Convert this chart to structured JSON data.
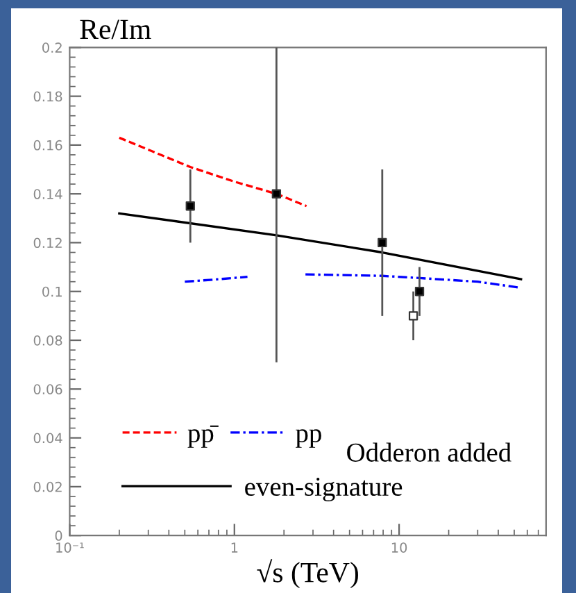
{
  "chart_data": {
    "type": "line",
    "ylabel": "Re/Im",
    "xlabel": "√s (TeV)",
    "log": "x",
    "xlim": [
      0.1,
      78
    ],
    "xticks": [
      {
        "value": 0.1,
        "label": "10⁻¹"
      },
      1,
      10
    ],
    "ylim": [
      0,
      0.2
    ],
    "yticks": [
      0,
      0.02,
      0.04,
      0.06,
      0.08,
      0.1,
      0.12,
      0.14,
      0.16,
      0.18,
      0.2
    ],
    "grid": false,
    "legend": "bottom left",
    "annotations": [
      "Odderon added"
    ],
    "series": [
      {
        "name": "pp̄",
        "line_style": "dashed",
        "color": "#ff0000",
        "x": [
          0.2,
          0.54,
          1.0,
          1.8,
          2.74
        ],
        "values": [
          0.163,
          0.151,
          0.145,
          0.14,
          0.135
        ]
      },
      {
        "name": "pp",
        "line_style": "dashdot",
        "color": "#0000ff",
        "x": [
          0.5,
          0.8,
          1.2,
          2.0,
          2.7,
          7.9,
          13.3,
          30,
          55
        ],
        "values": [
          0.104,
          0.105,
          0.106,
          null,
          0.107,
          0.1064,
          0.1055,
          0.104,
          0.1015
        ]
      },
      {
        "name": "even-signature",
        "line_style": "solid",
        "color": "#000000",
        "x": [
          0.2,
          1.8,
          7.9,
          55
        ],
        "values": [
          0.132,
          0.123,
          0.116,
          0.105
        ]
      },
      {
        "type": "scatter",
        "marker": "square",
        "color": "#000000",
        "x": [
          0.54,
          1.8,
          7.9,
          13.3
        ],
        "values": [
          0.135,
          0.14,
          0.12,
          0.1
        ],
        "errors": [
          [
            0.12,
            0.15
          ],
          [
            0.071,
            0.2
          ],
          [
            0.09,
            0.15
          ],
          [
            0.09,
            0.11
          ]
        ]
      },
      {
        "type": "scatter",
        "marker": "square",
        "color": "#ffffff",
        "x": [
          12.2
        ],
        "values": [
          0.09
        ],
        "errors": [
          [
            0.08,
            0.1
          ]
        ]
      }
    ]
  }
}
